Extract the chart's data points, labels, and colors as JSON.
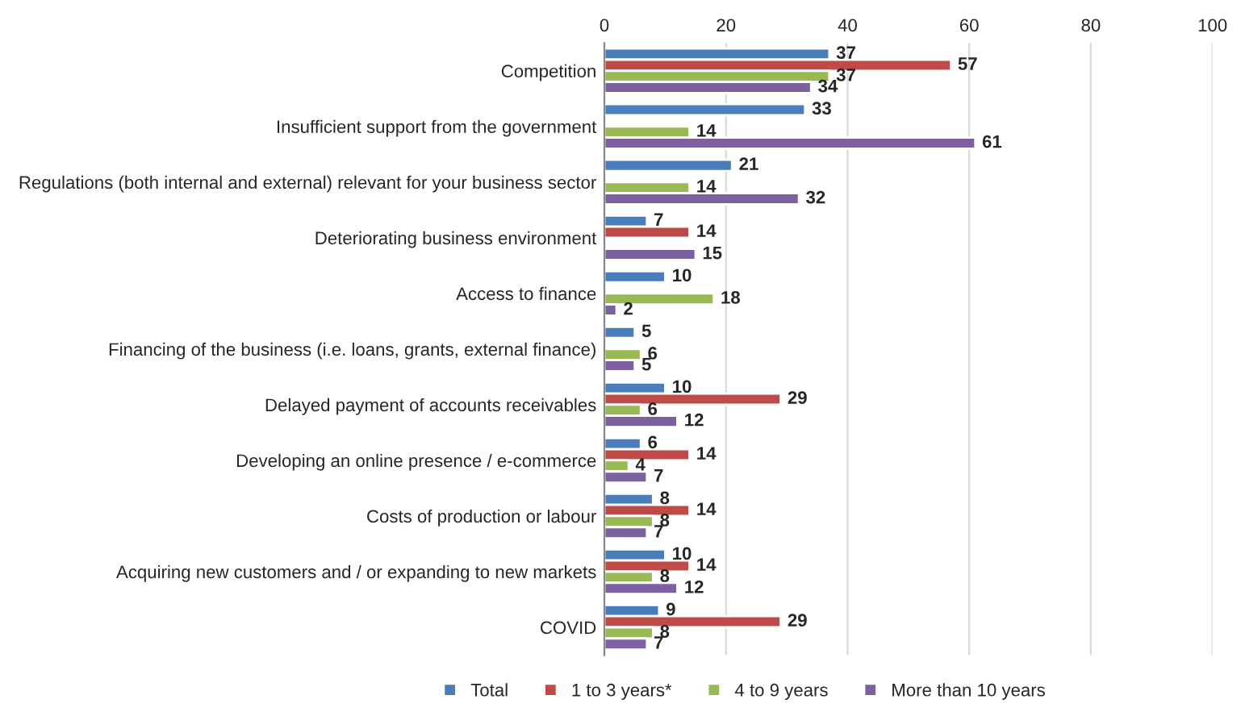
{
  "chart_data": {
    "type": "bar",
    "orientation": "horizontal",
    "categories": [
      "Competition",
      "Insufficient support from the government",
      "Regulations (both internal and external) relevant for your business sector",
      "Deteriorating business environment",
      "Access to finance",
      "Financing of the business (i.e. loans, grants, external finance)",
      "Delayed payment of accounts receivables",
      "Developing an online presence / e-commerce",
      "Costs of production or labour",
      "Acquiring new customers and / or expanding to new markets",
      "COVID"
    ],
    "series": [
      {
        "name": "Total",
        "color": "#4a7ebb",
        "values": [
          37,
          33,
          21,
          7,
          10,
          5,
          10,
          6,
          8,
          10,
          9
        ]
      },
      {
        "name": "1 to 3 years*",
        "color": "#be4b48",
        "values": [
          57,
          null,
          null,
          14,
          null,
          null,
          29,
          14,
          14,
          14,
          29
        ]
      },
      {
        "name": "4 to 9 years",
        "color": "#98b954",
        "values": [
          37,
          14,
          14,
          null,
          18,
          6,
          6,
          4,
          8,
          8,
          8
        ]
      },
      {
        "name": "More than 10 years",
        "color": "#7d60a0",
        "values": [
          34,
          61,
          32,
          15,
          2,
          5,
          12,
          7,
          7,
          12,
          7
        ]
      }
    ],
    "xlim": [
      0,
      100
    ],
    "xticks": [
      0,
      20,
      40,
      60,
      80,
      100
    ],
    "grid": "x",
    "legend": "bottom",
    "data_labels": true
  }
}
